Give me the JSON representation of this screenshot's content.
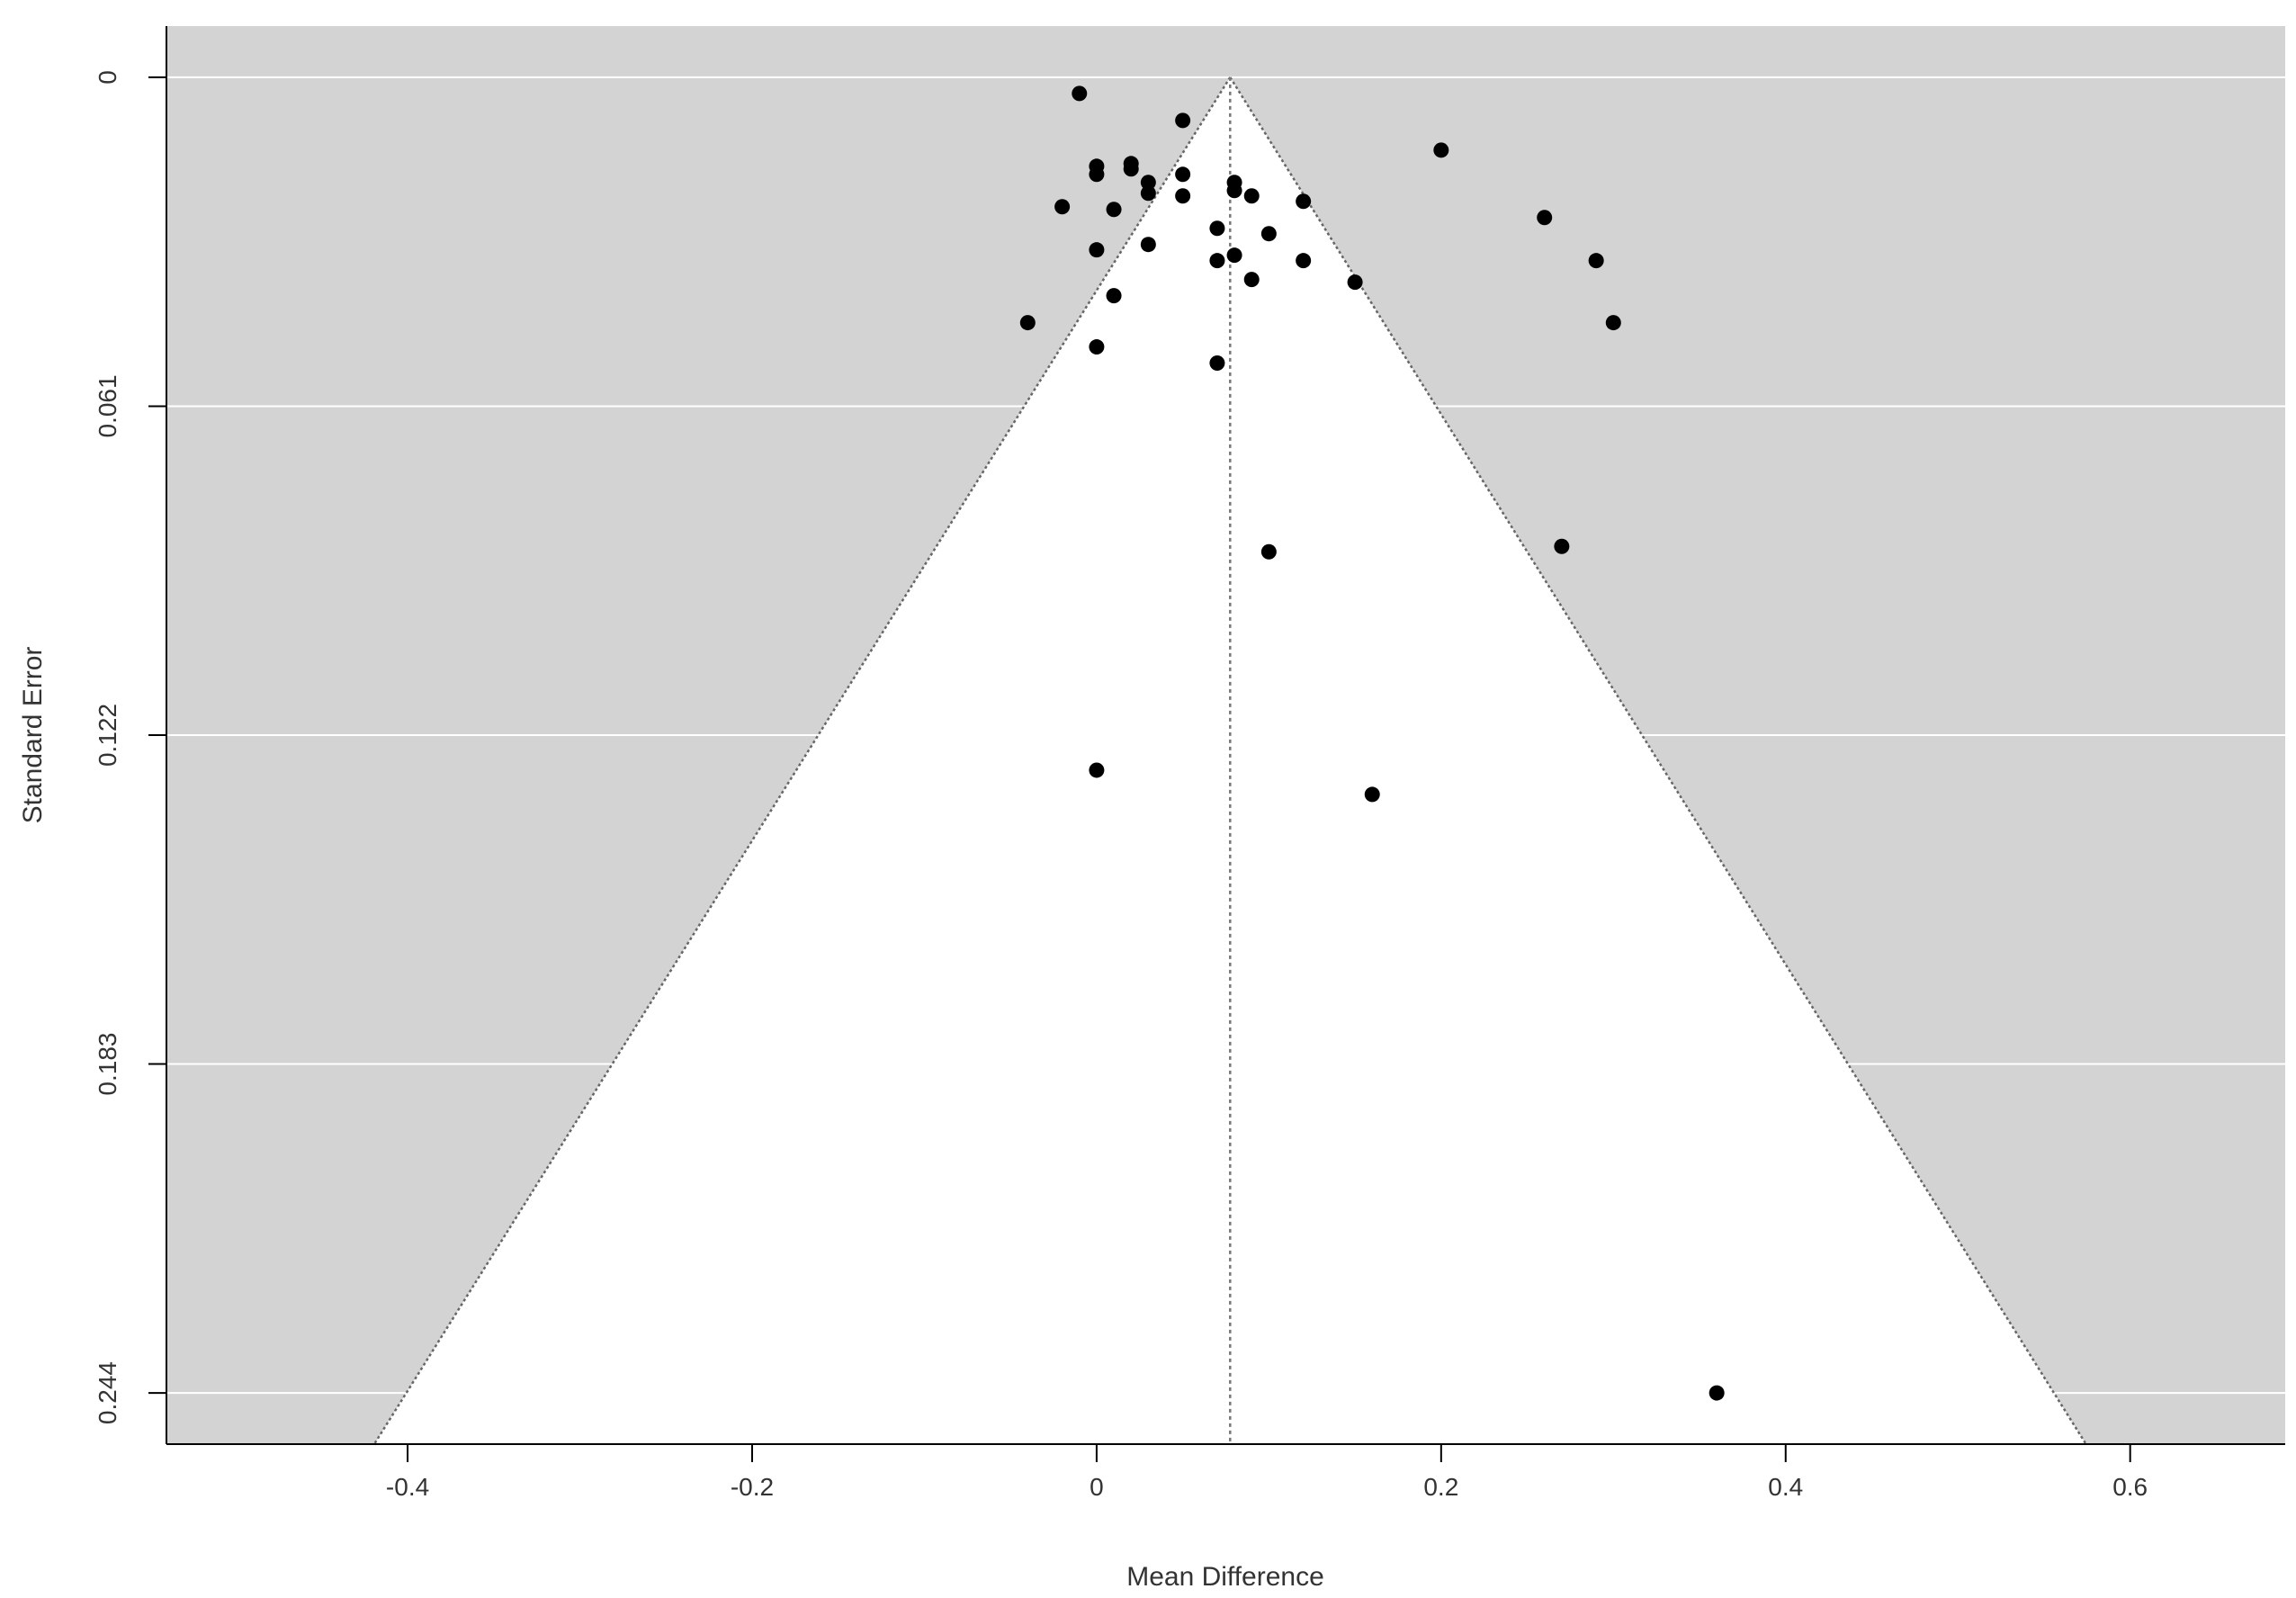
{
  "chart_data": {
    "type": "scatter",
    "subtype": "funnel",
    "title": "",
    "xlabel": "Mean Difference",
    "ylabel": "Standard Error",
    "xlim": [
      -0.54,
      0.69
    ],
    "ylim": [
      0.2535,
      -0.0095
    ],
    "y_reversed": true,
    "x_ticks": [
      "-0.4",
      "-0.2",
      "0",
      "0.2",
      "0.4",
      "0.6"
    ],
    "y_ticks": [
      "0",
      "0.061",
      "0.122",
      "0.183",
      "0.244"
    ],
    "grid": "horizontal",
    "legend": "none",
    "funnel": {
      "center": 0.0775,
      "z": 1.96,
      "se_max": 0.2535,
      "center_line": "dotted",
      "outside_region_color": "#d3d3d3",
      "inside_region_color": "#ffffff",
      "grid_color": "#ffffff"
    },
    "colors": {
      "points": "#000000",
      "funnel_edges": "#666666",
      "axis": "#000000"
    },
    "points": [
      {
        "x": -0.01,
        "y": 0.003
      },
      {
        "x": 0.05,
        "y": 0.008
      },
      {
        "x": 0.2,
        "y": 0.0135
      },
      {
        "x": 0.0,
        "y": 0.0165
      },
      {
        "x": 0.02,
        "y": 0.016
      },
      {
        "x": 0.02,
        "y": 0.017
      },
      {
        "x": 0.0,
        "y": 0.018
      },
      {
        "x": 0.05,
        "y": 0.018
      },
      {
        "x": 0.03,
        "y": 0.0195
      },
      {
        "x": 0.08,
        "y": 0.0195
      },
      {
        "x": 0.03,
        "y": 0.0215
      },
      {
        "x": 0.08,
        "y": 0.021
      },
      {
        "x": 0.05,
        "y": 0.022
      },
      {
        "x": 0.09,
        "y": 0.022
      },
      {
        "x": 0.12,
        "y": 0.023
      },
      {
        "x": -0.02,
        "y": 0.024
      },
      {
        "x": 0.01,
        "y": 0.0245
      },
      {
        "x": 0.26,
        "y": 0.026
      },
      {
        "x": 0.07,
        "y": 0.028
      },
      {
        "x": 0.1,
        "y": 0.029
      },
      {
        "x": 0.03,
        "y": 0.031
      },
      {
        "x": 0.0,
        "y": 0.032
      },
      {
        "x": 0.08,
        "y": 0.033
      },
      {
        "x": 0.07,
        "y": 0.034
      },
      {
        "x": 0.12,
        "y": 0.034
      },
      {
        "x": 0.29,
        "y": 0.034
      },
      {
        "x": 0.09,
        "y": 0.0375
      },
      {
        "x": 0.15,
        "y": 0.038
      },
      {
        "x": 0.01,
        "y": 0.0405
      },
      {
        "x": -0.04,
        "y": 0.0455
      },
      {
        "x": 0.3,
        "y": 0.0455
      },
      {
        "x": 0.0,
        "y": 0.05
      },
      {
        "x": 0.07,
        "y": 0.053
      },
      {
        "x": 0.27,
        "y": 0.087
      },
      {
        "x": 0.1,
        "y": 0.088
      },
      {
        "x": 0.0,
        "y": 0.1285
      },
      {
        "x": 0.16,
        "y": 0.133
      },
      {
        "x": 0.36,
        "y": 0.244
      }
    ]
  }
}
